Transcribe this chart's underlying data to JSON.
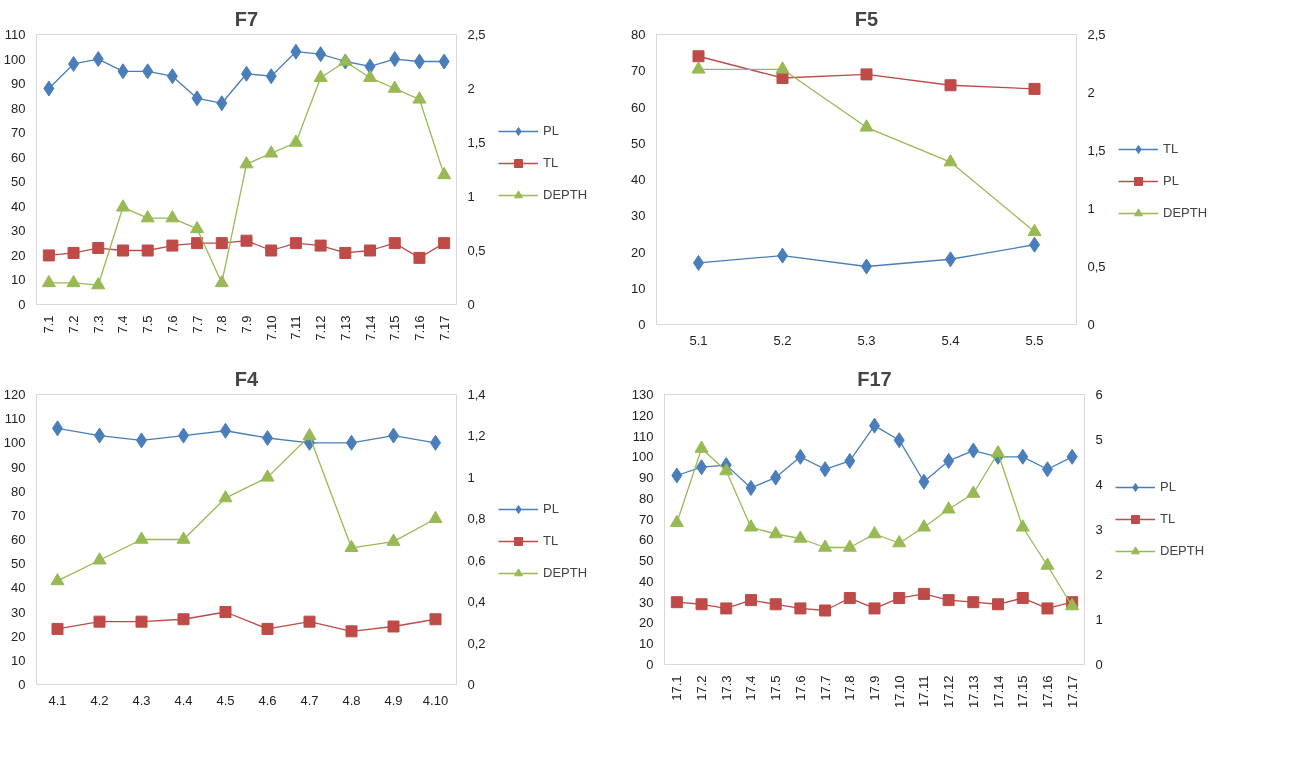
{
  "chart_data": [
    {
      "type": "line",
      "title": "F7",
      "categories": [
        "7.1",
        "7.2",
        "7.3",
        "7.4",
        "7.5",
        "7.6",
        "7.7",
        "7.8",
        "7.9",
        "7.10",
        "7.11",
        "7.12",
        "7.13",
        "7.14",
        "7.15",
        "7.16",
        "7.17"
      ],
      "ylim": [
        0,
        110
      ],
      "yticks": [
        0,
        10,
        20,
        30,
        40,
        50,
        60,
        70,
        80,
        90,
        100,
        110
      ],
      "y2lim": [
        0,
        2.5
      ],
      "y2ticks": [
        0,
        {
          "value": 0.5,
          "label": "0,5"
        },
        1,
        {
          "value": 1.5,
          "label": "1,5"
        },
        2,
        {
          "value": 2.5,
          "label": "2,5"
        }
      ],
      "grid": false,
      "legend": "right",
      "series": [
        {
          "name": "PL",
          "color": "#4a7ebb",
          "marker": "diamond",
          "values": [
            88,
            98,
            100,
            95,
            95,
            93,
            84,
            82,
            94,
            93,
            103,
            102,
            99,
            97,
            100,
            99,
            99
          ]
        },
        {
          "name": "TL",
          "color": "#be4b48",
          "marker": "square",
          "values": [
            20,
            21,
            23,
            22,
            22,
            24,
            25,
            25,
            26,
            22,
            25,
            24,
            21,
            22,
            25,
            19,
            25
          ]
        },
        {
          "name": "DEPTH",
          "color": "#98b954",
          "marker": "triangle",
          "axis": "y2",
          "values": [
            0.2,
            0.2,
            0.18,
            0.9,
            0.8,
            0.8,
            0.7,
            0.2,
            1.3,
            1.4,
            1.5,
            2.1,
            2.25,
            2.1,
            2.0,
            1.9,
            1.2
          ]
        }
      ]
    },
    {
      "type": "line",
      "title": "F5",
      "categories": [
        "5.1",
        "5.2",
        "5.3",
        "5.4",
        "5.5"
      ],
      "ylim": [
        0,
        80
      ],
      "yticks": [
        0,
        10,
        20,
        30,
        40,
        50,
        60,
        70,
        80
      ],
      "y2lim": [
        0,
        2.5
      ],
      "y2ticks": [
        0,
        {
          "value": 0.5,
          "label": "0,5"
        },
        1,
        {
          "value": 1.5,
          "label": "1,5"
        },
        2,
        {
          "value": 2.5,
          "label": "2,5"
        }
      ],
      "grid": false,
      "legend": "right",
      "series": [
        {
          "name": "TL",
          "color": "#4a7ebb",
          "marker": "diamond",
          "values": [
            17,
            19,
            16,
            18,
            22
          ]
        },
        {
          "name": "PL",
          "color": "#be4b48",
          "marker": "square",
          "values": [
            74,
            68,
            69,
            66,
            65
          ]
        },
        {
          "name": "DEPTH",
          "color": "#98b954",
          "marker": "triangle",
          "axis": "y2",
          "values": [
            2.2,
            2.2,
            1.7,
            1.4,
            0.8
          ]
        }
      ]
    },
    {
      "type": "line",
      "title": "F4",
      "categories": [
        "4.1",
        "4.2",
        "4.3",
        "4.4",
        "4.5",
        "4.6",
        "4.7",
        "4.8",
        "4.9",
        "4.10"
      ],
      "ylim": [
        0,
        120
      ],
      "yticks": [
        0,
        10,
        20,
        30,
        40,
        50,
        60,
        70,
        80,
        90,
        100,
        110,
        120
      ],
      "y2lim": [
        0,
        1.4
      ],
      "y2ticks": [
        0,
        {
          "value": 0.2,
          "label": "0,2"
        },
        {
          "value": 0.4,
          "label": "0,4"
        },
        {
          "value": 0.6,
          "label": "0,6"
        },
        {
          "value": 0.8,
          "label": "0,8"
        },
        1,
        {
          "value": 1.2,
          "label": "1,2"
        },
        {
          "value": 1.4,
          "label": "1,4"
        }
      ],
      "grid": false,
      "legend": "right",
      "series": [
        {
          "name": "PL",
          "color": "#4a7ebb",
          "marker": "diamond",
          "values": [
            106,
            103,
            101,
            103,
            105,
            102,
            100,
            100,
            103,
            100
          ]
        },
        {
          "name": "TL",
          "color": "#be4b48",
          "marker": "square",
          "values": [
            23,
            26,
            26,
            27,
            30,
            23,
            26,
            22,
            24,
            27
          ]
        },
        {
          "name": "DEPTH",
          "color": "#98b954",
          "marker": "triangle",
          "axis": "y2",
          "values": [
            0.5,
            0.6,
            0.7,
            0.7,
            0.9,
            1.0,
            1.2,
            0.66,
            0.69,
            0.8
          ]
        }
      ]
    },
    {
      "type": "line",
      "title": "F17",
      "categories": [
        "17.1",
        "17.2",
        "17.3",
        "17.4",
        "17.5",
        "17.6",
        "17.7",
        "17.8",
        "17.9",
        "17.10",
        "17.11",
        "17.12",
        "17.13",
        "17.14",
        "17.15",
        "17.16",
        "17.17"
      ],
      "ylim": [
        0,
        130
      ],
      "yticks": [
        0,
        10,
        20,
        30,
        40,
        50,
        60,
        70,
        80,
        90,
        100,
        110,
        120,
        130
      ],
      "y2lim": [
        0,
        6
      ],
      "y2ticks": [
        0,
        1,
        2,
        3,
        4,
        5,
        6
      ],
      "grid": false,
      "legend": "right",
      "series": [
        {
          "name": "PL",
          "color": "#4a7ebb",
          "marker": "diamond",
          "values": [
            91,
            95,
            96,
            85,
            90,
            100,
            94,
            98,
            115,
            108,
            88,
            98,
            103,
            100,
            100,
            94,
            100
          ]
        },
        {
          "name": "TL",
          "color": "#be4b48",
          "marker": "square",
          "values": [
            30,
            29,
            27,
            31,
            29,
            27,
            26,
            32,
            27,
            32,
            34,
            31,
            30,
            29,
            32,
            27,
            30
          ]
        },
        {
          "name": "DEPTH",
          "color": "#98b954",
          "marker": "triangle",
          "axis": "y2",
          "values": [
            3.15,
            4.8,
            4.3,
            3.05,
            2.9,
            2.8,
            2.6,
            2.6,
            2.9,
            2.7,
            3.05,
            3.45,
            3.8,
            4.7,
            3.05,
            2.2,
            1.3
          ]
        }
      ]
    }
  ]
}
